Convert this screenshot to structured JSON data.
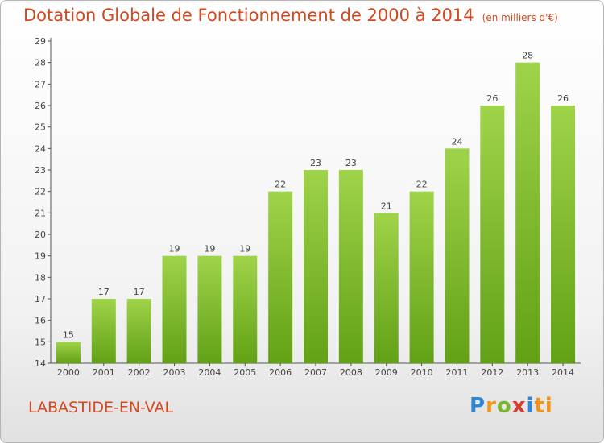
{
  "header": {
    "title": "Dotation Globale de Fonctionnement de 2000 à 2014",
    "unit": "(en milliers d'€)"
  },
  "footer": {
    "commune": "LABASTIDE-EN-VAL",
    "logo_letters": [
      "P",
      "r",
      "o",
      "x",
      "i",
      "ti"
    ]
  },
  "colors": {
    "title": "#d2491f",
    "bar_top": "#9fd34a",
    "bar_bottom": "#62a116",
    "axis": "#555555"
  },
  "chart_data": {
    "type": "bar",
    "title": "Dotation Globale de Fonctionnement de 2000 à 2014",
    "xlabel": "",
    "ylabel": "",
    "categories": [
      "2000",
      "2001",
      "2002",
      "2003",
      "2004",
      "2005",
      "2006",
      "2007",
      "2008",
      "2009",
      "2010",
      "2011",
      "2012",
      "2013",
      "2014"
    ],
    "values": [
      15,
      17,
      17,
      19,
      19,
      19,
      22,
      23,
      23,
      21,
      22,
      24,
      26,
      28,
      26
    ],
    "ylim": [
      14,
      29
    ],
    "yticks": [
      14,
      15,
      16,
      17,
      18,
      19,
      20,
      21,
      22,
      23,
      24,
      25,
      26,
      27,
      28,
      29
    ],
    "grid": false,
    "data_labels": true
  }
}
